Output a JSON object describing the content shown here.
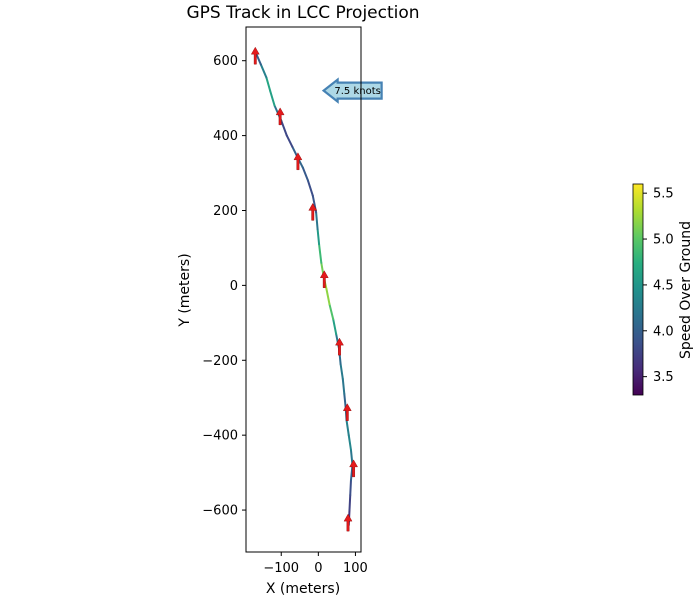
{
  "chart_data": {
    "type": "line",
    "title": "GPS Track in LCC Projection",
    "xlabel": "X (meters)",
    "ylabel": "Y (meters)",
    "xlim": [
      -195,
      115
    ],
    "ylim": [
      -712,
      690
    ],
    "xticks": [
      -100,
      0,
      100
    ],
    "xtick_labels": [
      "−100",
      "0",
      "100"
    ],
    "yticks": [
      -600,
      -400,
      -200,
      0,
      200,
      400,
      600
    ],
    "ytick_labels": [
      "−600",
      "−400",
      "−200",
      "0",
      "200",
      "400",
      "600"
    ],
    "grid": false,
    "colorbar": {
      "label": "Speed Over Ground",
      "range": [
        3.3,
        5.6
      ],
      "ticks": [
        3.5,
        4.0,
        4.5,
        5.0,
        5.5
      ],
      "tick_labels": [
        "3.5",
        "4.0",
        "4.5",
        "5.0",
        "5.5"
      ],
      "colormap": "viridis"
    },
    "track": [
      {
        "x": 82,
        "y": -640,
        "speed": 3.6
      },
      {
        "x": 84,
        "y": -600,
        "speed": 3.7
      },
      {
        "x": 86,
        "y": -560,
        "speed": 3.8
      },
      {
        "x": 88,
        "y": -520,
        "speed": 3.9
      },
      {
        "x": 92,
        "y": -480,
        "speed": 4.1
      },
      {
        "x": 88,
        "y": -440,
        "speed": 4.3
      },
      {
        "x": 82,
        "y": -400,
        "speed": 4.4
      },
      {
        "x": 76,
        "y": -360,
        "speed": 4.2
      },
      {
        "x": 74,
        "y": -330,
        "speed": 4.0
      },
      {
        "x": 70,
        "y": -290,
        "speed": 4.1
      },
      {
        "x": 66,
        "y": -250,
        "speed": 4.3
      },
      {
        "x": 60,
        "y": -210,
        "speed": 4.2
      },
      {
        "x": 56,
        "y": -170,
        "speed": 4.0
      },
      {
        "x": 48,
        "y": -130,
        "speed": 4.4
      },
      {
        "x": 40,
        "y": -90,
        "speed": 4.8
      },
      {
        "x": 30,
        "y": -50,
        "speed": 5.1
      },
      {
        "x": 22,
        "y": -10,
        "speed": 5.3
      },
      {
        "x": 15,
        "y": 20,
        "speed": 5.2
      },
      {
        "x": 8,
        "y": 60,
        "speed": 5.0
      },
      {
        "x": 2,
        "y": 110,
        "speed": 4.7
      },
      {
        "x": -2,
        "y": 150,
        "speed": 4.4
      },
      {
        "x": -6,
        "y": 195,
        "speed": 4.0
      },
      {
        "x": -15,
        "y": 240,
        "speed": 3.8
      },
      {
        "x": -28,
        "y": 280,
        "speed": 3.9
      },
      {
        "x": -42,
        "y": 315,
        "speed": 4.0
      },
      {
        "x": -55,
        "y": 340,
        "speed": 4.1
      },
      {
        "x": -70,
        "y": 370,
        "speed": 3.9
      },
      {
        "x": -85,
        "y": 400,
        "speed": 3.7
      },
      {
        "x": -100,
        "y": 440,
        "speed": 3.9
      },
      {
        "x": -118,
        "y": 480,
        "speed": 4.4
      },
      {
        "x": -130,
        "y": 520,
        "speed": 4.8
      },
      {
        "x": -140,
        "y": 555,
        "speed": 4.5
      },
      {
        "x": -155,
        "y": 590,
        "speed": 4.1
      },
      {
        "x": -168,
        "y": 620,
        "speed": 3.9
      }
    ],
    "arrows": [
      {
        "x": 80,
        "y": -635
      },
      {
        "x": 95,
        "y": -490
      },
      {
        "x": 78,
        "y": -340
      },
      {
        "x": 57,
        "y": -165
      },
      {
        "x": 16,
        "y": 15
      },
      {
        "x": -15,
        "y": 195
      },
      {
        "x": -55,
        "y": 330
      },
      {
        "x": -103,
        "y": 450
      },
      {
        "x": -170,
        "y": 612
      }
    ],
    "annotation": {
      "text": "7.5 knots",
      "x": 52,
      "y": 520,
      "shape": "left-arrow",
      "fill": "#add8e6",
      "stroke": "#4682b4"
    }
  }
}
